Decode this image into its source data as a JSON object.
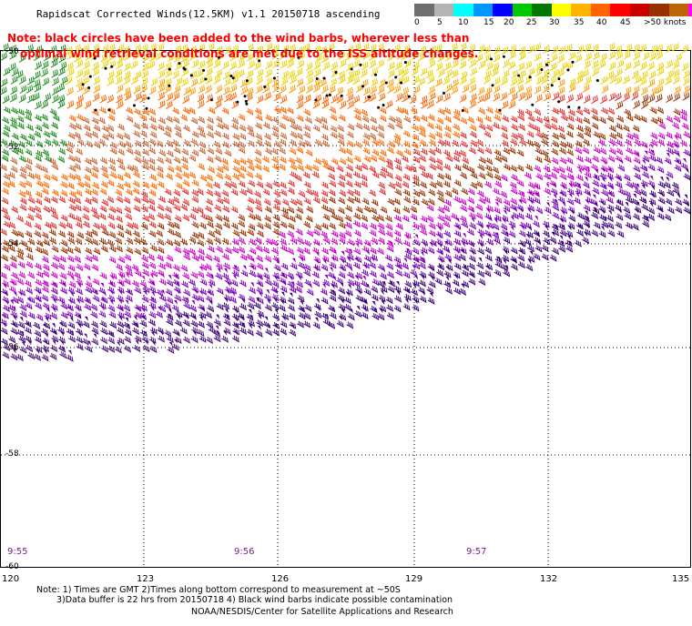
{
  "title": "Rapidscat Corrected Winds(12.5KM) v1.1 20150718 ascending",
  "note_line1": "Note: black circles have been added to the wind barbs, wherever less than",
  "note_line2": "optimal wind retrieval conditions are met due to the ISS altitude changes.",
  "legend": {
    "colors": [
      "#6e6e6e",
      "#b4b4b4",
      "#00ffff",
      "#0096ff",
      "#0000ff",
      "#00c800",
      "#007800",
      "#ffff00",
      "#ffb400",
      "#ff6400",
      "#ff0000",
      "#c80000",
      "#963200",
      "#be6400",
      "#ff00ff",
      "#c800c8",
      "#7800b4",
      "#3c0078"
    ],
    "labels": [
      "0",
      "5",
      "10",
      "15",
      "20",
      "25",
      "30",
      "35",
      "40",
      "45",
      ">50 knots"
    ]
  },
  "lat_labels": [
    "-50",
    "-52",
    "-54",
    "-56",
    "-58",
    "-60"
  ],
  "lon_labels": [
    "120",
    "123",
    "126",
    "129",
    "132",
    "135"
  ],
  "time_labels": [
    "9:55",
    "9:56",
    "9:57"
  ],
  "footer": {
    "line1": "Note: 1) Times are GMT 2)Times along bottom correspond to measurement at ~50S",
    "line2": "3)Data buffer is 22 hrs from 20150718 4) Black wind barbs indicate possible contamination",
    "line3": "NOAA/NESDIS/Center for Satellite Applications and Research"
  }
}
